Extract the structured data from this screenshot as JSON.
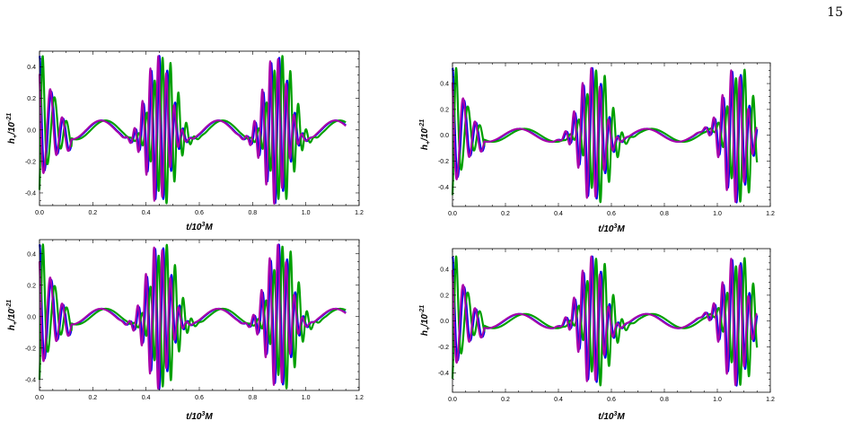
{
  "page": {
    "number": "15"
  },
  "chart_data": [
    {
      "type": "line",
      "panel": "top-left",
      "xlabel": {
        "pre": "t/10",
        "sup": "3",
        "post": "M"
      },
      "ylabel": {
        "pre": "h",
        "sub": "+",
        "mid": "/10",
        "sup": "-21"
      },
      "xlim": [
        0,
        1.2
      ],
      "ylim": [
        -0.48,
        0.5
      ],
      "xticks": [
        0,
        0.2,
        0.4,
        0.6,
        0.8,
        1.0,
        1.2
      ],
      "xtick_labels": [
        "0.0",
        "0.2",
        "0.4",
        "0.6",
        "0.8",
        "1.0",
        "1.2"
      ],
      "yticks": [
        -0.4,
        -0.2,
        0,
        0.2,
        0.4
      ],
      "ytick_labels": [
        "-0.4",
        "-0.2",
        "0.0",
        "0.2",
        "0.4"
      ],
      "grid": false,
      "colors": [
        "#0000ee",
        "#00a000",
        "#aa00aa"
      ],
      "model": {
        "T": 1.15,
        "A": 0.47,
        "bursts": [
          0.45,
          0.89
        ],
        "width": 0.06,
        "period": 0.03,
        "slowAmp": 0.06,
        "slowPeriod": 0.22,
        "shift": [
          0,
          0.012,
          -0.004
        ],
        "slowShift": [
          0,
          0.015,
          -0.003
        ]
      }
    },
    {
      "type": "line",
      "panel": "top-right",
      "xlabel": {
        "pre": "t/10",
        "sup": "3",
        "post": "M"
      },
      "ylabel": {
        "pre": "h",
        "sub": "+",
        "mid": "/10",
        "sup": "-21"
      },
      "xlim": [
        0,
        1.2
      ],
      "ylim": [
        -0.55,
        0.56
      ],
      "xticks": [
        0,
        0.2,
        0.4,
        0.6,
        0.8,
        1.0,
        1.2
      ],
      "xtick_labels": [
        "0.0",
        "0.2",
        "0.4",
        "0.6",
        "0.8",
        "1.0",
        "1.2"
      ],
      "yticks": [
        -0.4,
        -0.2,
        0,
        0.2,
        0.4
      ],
      "ytick_labels": [
        "-0.4",
        "-0.2",
        "0.0",
        "0.2",
        "0.4"
      ],
      "grid": false,
      "colors": [
        "#0000ee",
        "#00a000",
        "#aa00aa"
      ],
      "model": {
        "T": 1.15,
        "A": 0.52,
        "bursts": [
          0.53,
          1.07
        ],
        "width": 0.06,
        "period": 0.033,
        "slowAmp": 0.05,
        "slowPeriod": 0.24,
        "shift": [
          0,
          0.014,
          -0.004
        ],
        "slowShift": [
          0,
          0.018,
          -0.003
        ]
      }
    },
    {
      "type": "line",
      "panel": "bottom-left",
      "xlabel": {
        "pre": "t/10",
        "sup": "3",
        "post": "M"
      },
      "ylabel": {
        "pre": "h",
        "sub": "+",
        "mid": "/10",
        "sup": "-21"
      },
      "xlim": [
        0,
        1.2
      ],
      "ylim": [
        -0.47,
        0.49
      ],
      "xticks": [
        0,
        0.2,
        0.4,
        0.6,
        0.8,
        1.0,
        1.2
      ],
      "xtick_labels": [
        "0.0",
        "0.2",
        "0.4",
        "0.6",
        "0.8",
        "1.0",
        "1.2"
      ],
      "yticks": [
        -0.4,
        -0.2,
        0,
        0.2,
        0.4
      ],
      "ytick_labels": [
        "-0.4",
        "-0.2",
        "0.0",
        "0.2",
        "0.4"
      ],
      "grid": false,
      "colors": [
        "#0000ee",
        "#00a000",
        "#aa00aa"
      ],
      "model": {
        "T": 1.15,
        "A": 0.46,
        "bursts": [
          0.45,
          0.9
        ],
        "width": 0.06,
        "period": 0.031,
        "slowAmp": 0.05,
        "slowPeriod": 0.22,
        "shift": [
          0,
          0.013,
          -0.004
        ],
        "slowShift": [
          0,
          0.016,
          -0.003
        ]
      }
    },
    {
      "type": "line",
      "panel": "bottom-right",
      "xlabel": {
        "pre": "t/10",
        "sup": "3",
        "post": "M"
      },
      "ylabel": {
        "pre": "h",
        "sub": "+",
        "mid": "/10",
        "sup": "-21"
      },
      "xlim": [
        0,
        1.2
      ],
      "ylim": [
        -0.55,
        0.56
      ],
      "xticks": [
        0,
        0.2,
        0.4,
        0.6,
        0.8,
        1.0,
        1.2
      ],
      "xtick_labels": [
        "0.0",
        "0.2",
        "0.4",
        "0.6",
        "0.8",
        "1.0",
        "1.2"
      ],
      "yticks": [
        -0.4,
        -0.2,
        0,
        0.2,
        0.4
      ],
      "ytick_labels": [
        "-0.4",
        "-0.2",
        "0.0",
        "0.2",
        "0.4"
      ],
      "grid": false,
      "colors": [
        "#0000ee",
        "#00a000",
        "#aa00aa"
      ],
      "model": {
        "T": 1.15,
        "A": 0.5,
        "bursts": [
          0.53,
          1.07
        ],
        "width": 0.06,
        "period": 0.033,
        "slowAmp": 0.055,
        "slowPeriod": 0.24,
        "shift": [
          0,
          0.014,
          -0.004
        ],
        "slowShift": [
          0,
          0.02,
          -0.003
        ]
      }
    }
  ]
}
